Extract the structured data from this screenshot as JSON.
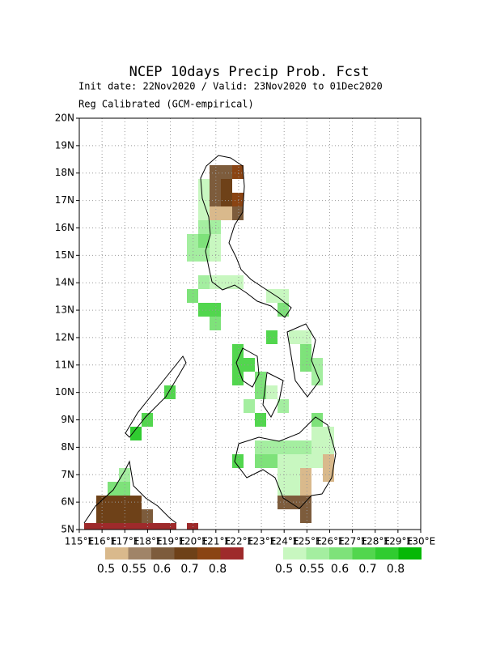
{
  "title": "NCEP 10days Precip Prob. Fcst",
  "init_line": "Init date: 22Nov2020 / Valid: 23Nov2020 to 01Dec2020",
  "calib_line": "Reg Calibrated (GCM-empirical)",
  "map": {
    "xlim": [
      115,
      130
    ],
    "ylim": [
      5,
      20
    ],
    "xticks": [
      {
        "value": 115,
        "label": "115°E"
      },
      {
        "value": 116,
        "label": "116°E"
      },
      {
        "value": 117,
        "label": "117°E"
      },
      {
        "value": 118,
        "label": "118°E"
      },
      {
        "value": 119,
        "label": "119°E"
      },
      {
        "value": 120,
        "label": "120°E"
      },
      {
        "value": 121,
        "label": "121°E"
      },
      {
        "value": 122,
        "label": "122°E"
      },
      {
        "value": 123,
        "label": "123°E"
      },
      {
        "value": 124,
        "label": "124°E"
      },
      {
        "value": 125,
        "label": "125°E"
      },
      {
        "value": 126,
        "label": "126°E"
      },
      {
        "value": 127,
        "label": "127°E"
      },
      {
        "value": 128,
        "label": "128°E"
      },
      {
        "value": 129,
        "label": "129°E"
      },
      {
        "value": 130,
        "label": "130°E"
      }
    ],
    "yticks": [
      {
        "value": 5,
        "label": "5N"
      },
      {
        "value": 6,
        "label": "6N"
      },
      {
        "value": 7,
        "label": "7N"
      },
      {
        "value": 8,
        "label": "8N"
      },
      {
        "value": 9,
        "label": "9N"
      },
      {
        "value": 10,
        "label": "10N"
      },
      {
        "value": 11,
        "label": "11N"
      },
      {
        "value": 12,
        "label": "12N"
      },
      {
        "value": 13,
        "label": "13N"
      },
      {
        "value": 14,
        "label": "14N"
      },
      {
        "value": 15,
        "label": "15N"
      },
      {
        "value": 16,
        "label": "16N"
      },
      {
        "value": 17,
        "label": "17N"
      },
      {
        "value": 18,
        "label": "18N"
      },
      {
        "value": 19,
        "label": "19N"
      },
      {
        "value": 20,
        "label": "20N"
      }
    ],
    "grid": true
  },
  "legend": {
    "dry": {
      "labels": [
        0.5,
        0.55,
        0.6,
        0.7,
        0.8
      ],
      "colors": [
        "#d9b98c",
        "#a08468",
        "#7d5c3c",
        "#6e4118",
        "#8a4413",
        "#9e2a2b"
      ]
    },
    "wet": {
      "labels": [
        0.5,
        0.55,
        0.6,
        0.7,
        0.8
      ],
      "colors": [
        "#c8f7c0",
        "#a4eea0",
        "#7ee27a",
        "#52d64e",
        "#30cc30",
        "#06b806"
      ]
    }
  }
}
